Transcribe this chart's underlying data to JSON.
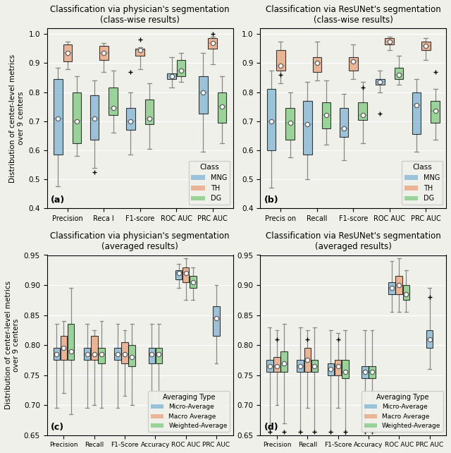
{
  "fig_width": 6.4,
  "fig_height": 6.42,
  "background_color": "#f0f0eb",
  "subplot_titles": [
    [
      "Classification via physician's segmentation\n(class-wise results)",
      "Classification via ResUNet's segmentation\n(class-wise results)"
    ],
    [
      "Classification via physician's segmentation\n(averaged results)",
      "Classification via ResUNet's segmentation\n(averaged results)"
    ]
  ],
  "panel_labels": [
    "(a)",
    "(b)",
    "(c)",
    "(d)"
  ],
  "ylabel": "Distribution of center-level metrics\nover 9 centers",
  "class_colors": {
    "MNG": "#7fb3d3",
    "TH": "#e8a07a",
    "DG": "#7ec87e"
  },
  "avg_colors": {
    "Micro-Average": "#7fb3d3",
    "Macro Average": "#e8a07a",
    "Weighted-Average": "#7ec87e"
  },
  "top_metrics": [
    "Precision",
    "Reca l",
    "F1-score",
    "ROC AUC",
    "PRC AUC"
  ],
  "bot_metrics": [
    "Precision",
    "Recall",
    "F1-Score",
    "Accuracy",
    "ROC AUC",
    "PRC AUC"
  ],
  "panel_a": {
    "MNG": {
      "Precision": {
        "q1": 0.585,
        "median": 0.71,
        "q3": 0.845,
        "whislo": 0.475,
        "whishi": 0.885,
        "mean": 0.71,
        "fliers": []
      },
      "Reca l": {
        "q1": 0.635,
        "median": 0.71,
        "q3": 0.79,
        "whislo": 0.54,
        "whishi": 0.84,
        "mean": 0.71,
        "fliers": [
          0.525
        ]
      },
      "F1-score": {
        "q1": 0.67,
        "median": 0.7,
        "q3": 0.745,
        "whislo": 0.585,
        "whishi": 0.8,
        "mean": 0.7,
        "fliers": [
          0.87
        ]
      },
      "ROC AUC": {
        "q1": 0.845,
        "median": 0.855,
        "q3": 0.865,
        "whislo": 0.815,
        "whishi": 0.92,
        "mean": 0.855,
        "fliers": []
      },
      "PRC AUC": {
        "q1": 0.725,
        "median": 0.8,
        "q3": 0.855,
        "whislo": 0.595,
        "whishi": 0.935,
        "mean": 0.8,
        "fliers": []
      }
    },
    "TH": {
      "Precision": {
        "q1": 0.905,
        "median": 0.935,
        "q3": 0.965,
        "whislo": 0.88,
        "whishi": 0.975,
        "mean": 0.935,
        "fliers": []
      },
      "Reca l": {
        "q1": 0.91,
        "median": 0.935,
        "q3": 0.96,
        "whislo": 0.87,
        "whishi": 0.97,
        "mean": 0.935,
        "fliers": []
      },
      "F1-score": {
        "q1": 0.925,
        "median": 0.945,
        "q3": 0.95,
        "whislo": 0.88,
        "whishi": 0.955,
        "mean": 0.945,
        "fliers": [
          0.98
        ]
      },
      "ROC AUC": null,
      "PRC AUC": {
        "q1": 0.95,
        "median": 0.97,
        "q3": 0.985,
        "whislo": 0.895,
        "whishi": 0.99,
        "mean": 0.97,
        "fliers": [
          1.0
        ]
      }
    },
    "DG": {
      "Precision": {
        "q1": 0.625,
        "median": 0.7,
        "q3": 0.8,
        "whislo": 0.58,
        "whishi": 0.855,
        "mean": 0.7,
        "fliers": []
      },
      "Reca l": {
        "q1": 0.72,
        "median": 0.745,
        "q3": 0.815,
        "whislo": 0.66,
        "whishi": 0.875,
        "mean": 0.745,
        "fliers": []
      },
      "F1-score": {
        "q1": 0.69,
        "median": 0.71,
        "q3": 0.775,
        "whislo": 0.605,
        "whishi": 0.83,
        "mean": 0.71,
        "fliers": []
      },
      "ROC AUC": {
        "q1": 0.855,
        "median": 0.875,
        "q3": 0.91,
        "whislo": 0.835,
        "whishi": 0.935,
        "mean": 0.875,
        "fliers": []
      },
      "PRC AUC": {
        "q1": 0.695,
        "median": 0.75,
        "q3": 0.8,
        "whislo": 0.625,
        "whishi": 0.855,
        "mean": 0.75,
        "fliers": []
      }
    }
  },
  "panel_b": {
    "MNG": {
      "Precis on": {
        "q1": 0.6,
        "median": 0.7,
        "q3": 0.81,
        "whislo": 0.47,
        "whishi": 0.875,
        "mean": 0.7,
        "fliers": []
      },
      "Recall": {
        "q1": 0.585,
        "median": 0.69,
        "q3": 0.77,
        "whislo": 0.5,
        "whishi": 0.835,
        "mean": 0.69,
        "fliers": []
      },
      "F1-score": {
        "q1": 0.645,
        "median": 0.675,
        "q3": 0.745,
        "whislo": 0.565,
        "whishi": 0.795,
        "mean": 0.675,
        "fliers": []
      },
      "ROC AUC": {
        "q1": 0.825,
        "median": 0.835,
        "q3": 0.845,
        "whislo": 0.8,
        "whishi": 0.875,
        "mean": 0.835,
        "fliers": [
          0.725
        ]
      },
      "PRC AUC": {
        "q1": 0.655,
        "median": 0.755,
        "q3": 0.8,
        "whislo": 0.595,
        "whishi": 0.845,
        "mean": 0.755,
        "fliers": []
      }
    },
    "TH": {
      "Precis on": {
        "q1": 0.875,
        "median": 0.89,
        "q3": 0.945,
        "whislo": 0.83,
        "whishi": 0.975,
        "mean": 0.89,
        "fliers": [
          0.86
        ]
      },
      "Recall": {
        "q1": 0.87,
        "median": 0.9,
        "q3": 0.92,
        "whislo": 0.84,
        "whishi": 0.975,
        "mean": 0.9,
        "fliers": []
      },
      "F1-score": {
        "q1": 0.875,
        "median": 0.905,
        "q3": 0.92,
        "whislo": 0.845,
        "whishi": 0.965,
        "mean": 0.905,
        "fliers": []
      },
      "ROC AUC": {
        "q1": 0.965,
        "median": 0.975,
        "q3": 0.985,
        "whislo": 0.945,
        "whishi": 0.99,
        "mean": 0.975,
        "fliers": []
      },
      "PRC AUC": {
        "q1": 0.945,
        "median": 0.96,
        "q3": 0.975,
        "whislo": 0.91,
        "whishi": 0.985,
        "mean": 0.96,
        "fliers": []
      }
    },
    "DG": {
      "Precis on": {
        "q1": 0.635,
        "median": 0.695,
        "q3": 0.745,
        "whislo": 0.575,
        "whishi": 0.8,
        "mean": 0.695,
        "fliers": []
      },
      "Recall": {
        "q1": 0.675,
        "median": 0.72,
        "q3": 0.765,
        "whislo": 0.62,
        "whishi": 0.84,
        "mean": 0.72,
        "fliers": []
      },
      "F1-score": {
        "q1": 0.705,
        "median": 0.72,
        "q3": 0.765,
        "whislo": 0.625,
        "whishi": 0.835,
        "mean": 0.72,
        "fliers": [
          0.815
        ]
      },
      "ROC AUC": {
        "q1": 0.845,
        "median": 0.86,
        "q3": 0.885,
        "whislo": 0.825,
        "whishi": 0.925,
        "mean": 0.86,
        "fliers": []
      },
      "PRC AUC": {
        "q1": 0.695,
        "median": 0.735,
        "q3": 0.77,
        "whislo": 0.635,
        "whishi": 0.81,
        "mean": 0.735,
        "fliers": [
          0.87
        ]
      }
    }
  },
  "panel_b_metrics": [
    "Precis on",
    "Recall",
    "F1-score",
    "ROC AUC",
    "PRC AUC"
  ],
  "panel_c": {
    "Micro-Average": {
      "Precision": {
        "q1": 0.775,
        "median": 0.785,
        "q3": 0.795,
        "whislo": 0.695,
        "whishi": 0.835,
        "mean": 0.785,
        "fliers": []
      },
      "Recall": {
        "q1": 0.775,
        "median": 0.785,
        "q3": 0.795,
        "whislo": 0.695,
        "whishi": 0.835,
        "mean": 0.785,
        "fliers": []
      },
      "F1-Score": {
        "q1": 0.775,
        "median": 0.785,
        "q3": 0.795,
        "whislo": 0.695,
        "whishi": 0.835,
        "mean": 0.785,
        "fliers": []
      },
      "Accuracy": {
        "q1": 0.77,
        "median": 0.785,
        "q3": 0.795,
        "whislo": 0.695,
        "whishi": 0.835,
        "mean": 0.785,
        "fliers": []
      },
      "ROC AUC": {
        "q1": 0.91,
        "median": 0.92,
        "q3": 0.925,
        "whislo": 0.895,
        "whishi": 0.935,
        "mean": 0.92,
        "fliers": []
      },
      "PRC AUC": {
        "q1": 0.815,
        "median": 0.845,
        "q3": 0.865,
        "whislo": 0.77,
        "whishi": 0.9,
        "mean": 0.845,
        "fliers": []
      }
    },
    "Macro Average": {
      "Precision": {
        "q1": 0.775,
        "median": 0.795,
        "q3": 0.815,
        "whislo": 0.72,
        "whishi": 0.84,
        "mean": 0.795,
        "fliers": []
      },
      "Recall": {
        "q1": 0.775,
        "median": 0.785,
        "q3": 0.815,
        "whislo": 0.7,
        "whishi": 0.825,
        "mean": 0.785,
        "fliers": []
      },
      "F1-Score": {
        "q1": 0.77,
        "median": 0.785,
        "q3": 0.805,
        "whislo": 0.715,
        "whishi": 0.825,
        "mean": 0.785,
        "fliers": []
      },
      "Accuracy": null,
      "ROC AUC": {
        "q1": 0.905,
        "median": 0.92,
        "q3": 0.93,
        "whislo": 0.875,
        "whishi": 0.945,
        "mean": 0.92,
        "fliers": []
      },
      "PRC AUC": null
    },
    "Weighted-Average": {
      "Precision": {
        "q1": 0.775,
        "median": 0.79,
        "q3": 0.835,
        "whislo": 0.685,
        "whishi": 0.895,
        "mean": 0.79,
        "fliers": []
      },
      "Recall": {
        "q1": 0.77,
        "median": 0.785,
        "q3": 0.795,
        "whislo": 0.695,
        "whishi": 0.84,
        "mean": 0.785,
        "fliers": []
      },
      "F1-Score": {
        "q1": 0.765,
        "median": 0.78,
        "q3": 0.8,
        "whislo": 0.7,
        "whishi": 0.835,
        "mean": 0.78,
        "fliers": []
      },
      "Accuracy": {
        "q1": 0.77,
        "median": 0.785,
        "q3": 0.795,
        "whislo": 0.695,
        "whishi": 0.835,
        "mean": 0.785,
        "fliers": []
      },
      "ROC AUC": {
        "q1": 0.895,
        "median": 0.905,
        "q3": 0.915,
        "whislo": 0.875,
        "whishi": 0.93,
        "mean": 0.905,
        "fliers": []
      },
      "PRC AUC": null
    }
  },
  "panel_d": {
    "Micro-Average": {
      "Precision": {
        "q1": 0.755,
        "median": 0.765,
        "q3": 0.775,
        "whislo": 0.655,
        "whishi": 0.83,
        "mean": 0.765,
        "fliers": [
          0.655
        ]
      },
      "Recall": {
        "q1": 0.755,
        "median": 0.765,
        "q3": 0.775,
        "whislo": 0.655,
        "whishi": 0.83,
        "mean": 0.765,
        "fliers": [
          0.655
        ]
      },
      "F1-Score": {
        "q1": 0.75,
        "median": 0.76,
        "q3": 0.77,
        "whislo": 0.655,
        "whishi": 0.825,
        "mean": 0.76,
        "fliers": [
          0.655
        ]
      },
      "Accuracy": {
        "q1": 0.745,
        "median": 0.755,
        "q3": 0.765,
        "whislo": 0.66,
        "whishi": 0.825,
        "mean": 0.755,
        "fliers": [
          0.655
        ]
      },
      "ROC AUC": {
        "q1": 0.885,
        "median": 0.895,
        "q3": 0.905,
        "whislo": 0.855,
        "whishi": 0.94,
        "mean": 0.895,
        "fliers": []
      },
      "PRC AUC": {
        "q1": 0.795,
        "median": 0.81,
        "q3": 0.825,
        "whislo": 0.76,
        "whishi": 0.895,
        "mean": 0.81,
        "fliers": [
          0.88
        ]
      }
    },
    "Macro Average": {
      "Precision": {
        "q1": 0.755,
        "median": 0.765,
        "q3": 0.78,
        "whislo": 0.7,
        "whishi": 0.825,
        "mean": 0.765,
        "fliers": [
          0.81
        ]
      },
      "Recall": {
        "q1": 0.755,
        "median": 0.775,
        "q3": 0.795,
        "whislo": 0.695,
        "whishi": 0.825,
        "mean": 0.775,
        "fliers": [
          0.81
        ]
      },
      "F1-Score": {
        "q1": 0.75,
        "median": 0.765,
        "q3": 0.775,
        "whislo": 0.695,
        "whishi": 0.82,
        "mean": 0.765,
        "fliers": [
          0.81
        ]
      },
      "Accuracy": null,
      "ROC AUC": {
        "q1": 0.885,
        "median": 0.9,
        "q3": 0.915,
        "whislo": 0.855,
        "whishi": 0.945,
        "mean": 0.9,
        "fliers": []
      },
      "PRC AUC": null
    },
    "Weighted-Average": {
      "Precision": {
        "q1": 0.755,
        "median": 0.77,
        "q3": 0.79,
        "whislo": 0.67,
        "whishi": 0.835,
        "mean": 0.77,
        "fliers": [
          0.655
        ]
      },
      "Recall": {
        "q1": 0.755,
        "median": 0.765,
        "q3": 0.775,
        "whislo": 0.655,
        "whishi": 0.83,
        "mean": 0.765,
        "fliers": [
          0.655
        ]
      },
      "F1-Score": {
        "q1": 0.745,
        "median": 0.755,
        "q3": 0.775,
        "whislo": 0.65,
        "whishi": 0.825,
        "mean": 0.755,
        "fliers": [
          0.655
        ]
      },
      "Accuracy": {
        "q1": 0.745,
        "median": 0.755,
        "q3": 0.765,
        "whislo": 0.66,
        "whishi": 0.825,
        "mean": 0.755,
        "fliers": [
          0.655
        ]
      },
      "ROC AUC": {
        "q1": 0.875,
        "median": 0.885,
        "q3": 0.9,
        "whislo": 0.855,
        "whishi": 0.925,
        "mean": 0.885,
        "fliers": []
      },
      "PRC AUC": null
    }
  }
}
